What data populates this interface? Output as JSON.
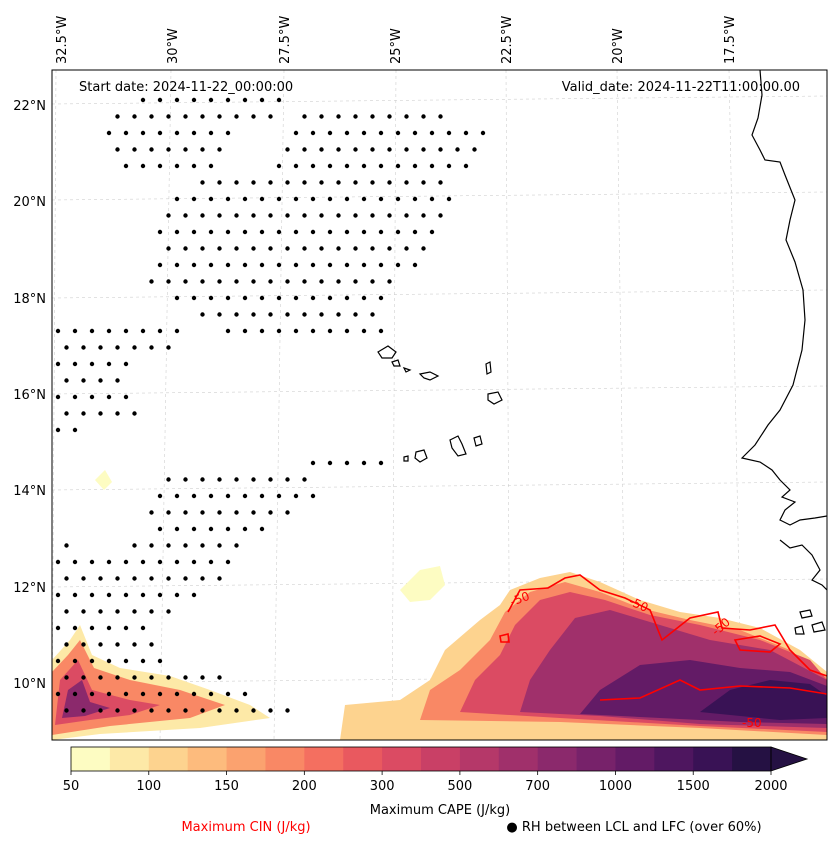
{
  "map": {
    "header_left": "Start date: 2024-11-22_00:00:00",
    "header_right": "Valid_date: 2024-11-22T11:00:00.00",
    "lon_labels": [
      "32.5°W",
      "30°W",
      "27.5°W",
      "25°W",
      "22.5°W",
      "20°W",
      "17.5°W"
    ],
    "lat_labels": [
      "22°N",
      "20°N",
      "18°N",
      "16°N",
      "14°N",
      "12°N",
      "10°N"
    ],
    "cin_contour_label": "-50",
    "gridlines": true
  },
  "colorbar": {
    "label": "Maximum CAPE (J/kg)",
    "tick_labels": [
      "50",
      "100",
      "150",
      "200",
      "300",
      "500",
      "700",
      "1000",
      "1500",
      "2000"
    ],
    "colors": [
      "#fdfcc2",
      "#fde9a7",
      "#fdd38f",
      "#fdbb7d",
      "#fba26f",
      "#f98865",
      "#f46f60",
      "#e9595f",
      "#db4b63",
      "#c94066",
      "#b53869",
      "#a0306b",
      "#8b296c",
      "#77226a",
      "#631b66",
      "#4e165f",
      "#391255",
      "#251143"
    ],
    "extend": "max"
  },
  "legend": {
    "cin_label": "Maximum CIN (J/kg)",
    "cin_color": "#ff0000",
    "rh_label": "● RH between LCL and LFC (over 60%)"
  }
}
